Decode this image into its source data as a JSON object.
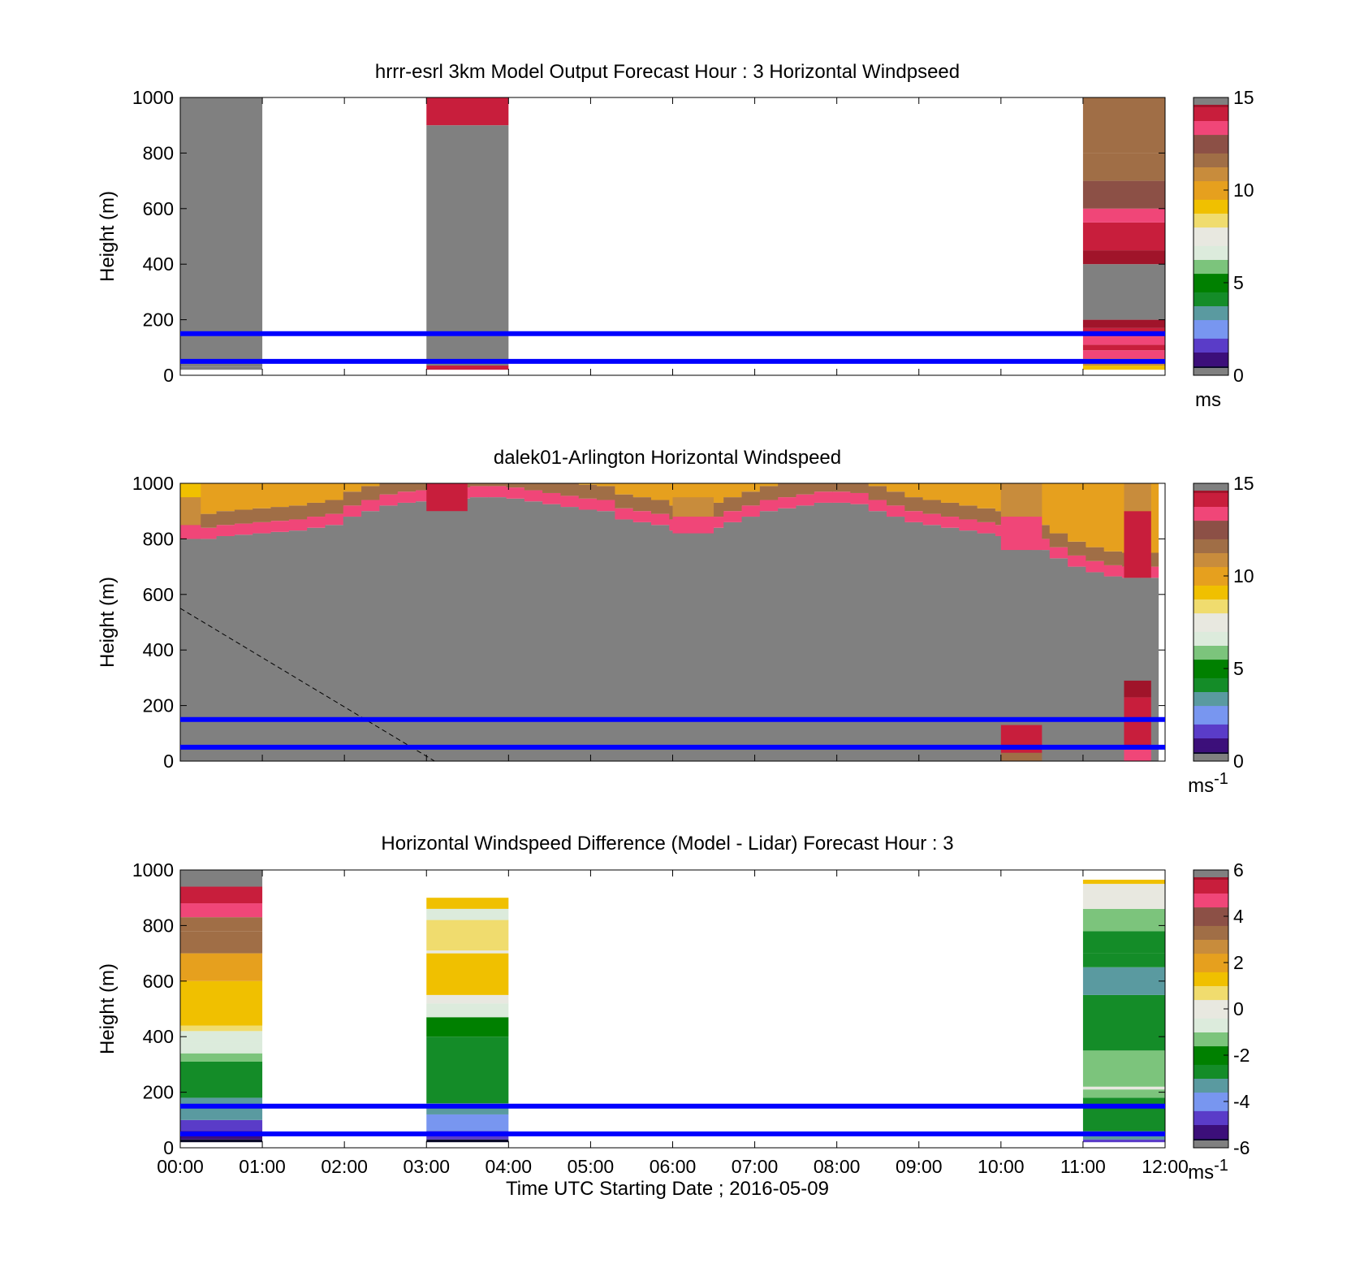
{
  "figure": {
    "xlabel": "Time UTC  Starting Date ; 2016-05-09",
    "x_tick_labels": [
      "00:00",
      "01:00",
      "02:00",
      "03:00",
      "04:00",
      "05:00",
      "06:00",
      "07:00",
      "08:00",
      "09:00",
      "10:00",
      "11:00",
      "12:00"
    ]
  },
  "colors": {
    "missing": "#808080",
    "reference_line": "#0000ff",
    "colormap": [
      "#0a0a28",
      "#3c0f7a",
      "#5a3cc8",
      "#7896f0",
      "#5a9aa0",
      "#148c28",
      "#008000",
      "#7cc47c",
      "#dcebdc",
      "#e8e8e0",
      "#f0dc6e",
      "#f0c000",
      "#e6a01e",
      "#c88c3c",
      "#a06e46",
      "#8c5046",
      "#f04678",
      "#c81e3c",
      "#a0142a"
    ]
  },
  "chart_data": [
    {
      "type": "heatmap",
      "title": "hrrr-esrl 3km Model Output   Forecast Hour : 3 Horizontal Windpseed",
      "xlabel": "",
      "ylabel": "Height (m)",
      "x_range_hours": [
        0,
        12
      ],
      "ylim": [
        0,
        1000
      ],
      "y_ticks": [
        0,
        200,
        400,
        600,
        800,
        1000
      ],
      "grid": false,
      "colorbar": {
        "min": 0,
        "max": 15,
        "ticks": [
          0,
          5,
          10,
          15
        ],
        "label": "ms",
        "label_sup": ""
      },
      "reference_lines_m": [
        150,
        50
      ],
      "columns": [
        {
          "t0": 0,
          "t1": 1,
          "layers": [
            [
              20,
              30,
              "missing"
            ],
            [
              30,
              1000,
              "missing"
            ]
          ]
        },
        {
          "t0": 3,
          "t1": 4,
          "layers": [
            [
              20,
              35,
              14
            ],
            [
              35,
              900,
              "missing"
            ],
            [
              900,
              1000,
              14.5
            ]
          ]
        },
        {
          "t0": 11,
          "t1": 12,
          "layers": [
            [
              20,
              35,
              9.5
            ],
            [
              35,
              60,
              11
            ],
            [
              60,
              90,
              13.5
            ],
            [
              90,
              110,
              14.3
            ],
            [
              110,
              140,
              13
            ],
            [
              140,
              170,
              14.2
            ],
            [
              170,
              200,
              14.6
            ],
            [
              200,
              400,
              "missing"
            ],
            [
              400,
              450,
              14.6
            ],
            [
              450,
              500,
              14.3
            ],
            [
              500,
              550,
              13.8
            ],
            [
              550,
              600,
              13.2
            ],
            [
              600,
              700,
              12.5
            ],
            [
              700,
              800,
              11.8
            ],
            [
              800,
              1000,
              11.4
            ]
          ]
        }
      ]
    },
    {
      "type": "heatmap",
      "title": "dalek01-Arlington  Horizontal Windspeed",
      "xlabel": "",
      "ylabel": "Height (m)",
      "x_range_hours": [
        0,
        12
      ],
      "ylim": [
        0,
        1000
      ],
      "y_ticks": [
        0,
        200,
        400,
        600,
        800,
        1000
      ],
      "grid": false,
      "colorbar": {
        "min": 0,
        "max": 15,
        "ticks": [
          0,
          5,
          10,
          15
        ],
        "label": "ms",
        "label_sup": "-1"
      },
      "reference_lines_m": [
        150,
        50
      ],
      "mixed_layer_line": {
        "style": "dashed",
        "points": [
          [
            0,
            550
          ],
          [
            3.1,
            0
          ]
        ]
      },
      "valid_data_top_m": [
        800,
        800,
        810,
        815,
        820,
        825,
        830,
        840,
        850,
        880,
        900,
        920,
        930,
        935,
        940,
        945,
        950,
        950,
        945,
        935,
        925,
        915,
        905,
        900,
        870,
        860,
        850,
        830,
        820,
        840,
        860,
        880,
        900,
        910,
        920,
        930,
        930,
        925,
        900,
        880,
        860,
        850,
        840,
        830,
        820,
        810,
        790,
        760,
        730,
        700,
        680,
        665,
        660,
        660
      ],
      "columns": [
        {
          "t0": 0,
          "t1": 0.25,
          "layers": [
            [
              0,
              800,
              "missing"
            ],
            [
              800,
              850,
              13
            ],
            [
              850,
              950,
              11
            ],
            [
              950,
              1000,
              9
            ]
          ]
        },
        {
          "t0": 3.0,
          "t1": 3.5,
          "layers": [
            [
              0,
              900,
              "missing"
            ],
            [
              900,
              1000,
              14
            ]
          ]
        },
        {
          "t0": 6.0,
          "t1": 6.5,
          "layers": [
            [
              0,
              820,
              "missing"
            ],
            [
              820,
              880,
              13
            ],
            [
              880,
              950,
              11
            ],
            [
              950,
              1000,
              10
            ]
          ]
        },
        {
          "t0": 10.0,
          "t1": 10.5,
          "layers": [
            [
              0,
              30,
              12
            ],
            [
              30,
              130,
              14
            ],
            [
              130,
              760,
              "missing"
            ],
            [
              760,
              880,
              13.5
            ],
            [
              880,
              1000,
              11
            ]
          ]
        },
        {
          "t0": 11.5,
          "t1": 11.83,
          "layers": [
            [
              0,
              50,
              13
            ],
            [
              50,
              230,
              14.5
            ],
            [
              230,
              290,
              14.7
            ],
            [
              290,
              660,
              "missing"
            ],
            [
              660,
              900,
              13.8
            ],
            [
              900,
              1000,
              11
            ]
          ]
        }
      ]
    },
    {
      "type": "heatmap",
      "title": "Horizontal Windspeed Difference (Model - Lidar) Forecast Hour : 3",
      "xlabel": "Time UTC  Starting Date ; 2016-05-09",
      "ylabel": "Height (m)",
      "x_range_hours": [
        0,
        12
      ],
      "ylim": [
        0,
        1000
      ],
      "y_ticks": [
        0,
        200,
        400,
        600,
        800,
        1000
      ],
      "grid": false,
      "colorbar": {
        "min": -6,
        "max": 6,
        "ticks": [
          -6,
          -4,
          -2,
          0,
          2,
          4,
          6
        ],
        "label": "ms",
        "label_sup": "-1"
      },
      "reference_lines_m": [
        150,
        50
      ],
      "columns": [
        {
          "t0": 0,
          "t1": 1,
          "layers": [
            [
              20,
              30,
              -6
            ],
            [
              30,
              60,
              -5.2
            ],
            [
              60,
              100,
              -4.5
            ],
            [
              100,
              150,
              -3.6
            ],
            [
              150,
              180,
              -3.3
            ],
            [
              180,
              310,
              -2.5
            ],
            [
              310,
              340,
              -1.5
            ],
            [
              340,
              380,
              -0.8
            ],
            [
              380,
              420,
              -0.5
            ],
            [
              420,
              440,
              0.5
            ],
            [
              440,
              600,
              1.2
            ],
            [
              600,
              700,
              2.3
            ],
            [
              700,
              780,
              3.0
            ],
            [
              780,
              830,
              3.6
            ],
            [
              830,
              880,
              4.4
            ],
            [
              880,
              940,
              5.2
            ],
            [
              940,
              1000,
              "missing"
            ]
          ]
        },
        {
          "t0": 3,
          "t1": 4,
          "layers": [
            [
              20,
              30,
              -6
            ],
            [
              30,
              60,
              -4.5
            ],
            [
              60,
              120,
              -3.8
            ],
            [
              120,
              160,
              -3.2
            ],
            [
              160,
              250,
              -3.0
            ],
            [
              250,
              400,
              -2.5
            ],
            [
              400,
              470,
              -1.8
            ],
            [
              470,
              520,
              -1.0
            ],
            [
              520,
              550,
              0
            ],
            [
              550,
              700,
              1.3
            ],
            [
              700,
              710,
              0
            ],
            [
              710,
              820,
              0.8
            ],
            [
              820,
              860,
              -0.5
            ],
            [
              860,
              900,
              1.5
            ]
          ]
        },
        {
          "t0": 11,
          "t1": 12,
          "layers": [
            [
              20,
              30,
              -5
            ],
            [
              30,
              60,
              -3.3
            ],
            [
              60,
              180,
              -2.7
            ],
            [
              180,
              210,
              -1.3
            ],
            [
              210,
              220,
              0
            ],
            [
              220,
              350,
              -1.2
            ],
            [
              350,
              500,
              -2.5
            ],
            [
              500,
              550,
              -3.0
            ],
            [
              550,
              650,
              -3.6
            ],
            [
              650,
              700,
              -3.0
            ],
            [
              700,
              780,
              -2.5
            ],
            [
              780,
              860,
              -1.5
            ],
            [
              860,
              950,
              0
            ],
            [
              950,
              965,
              1.5
            ]
          ]
        }
      ]
    }
  ]
}
